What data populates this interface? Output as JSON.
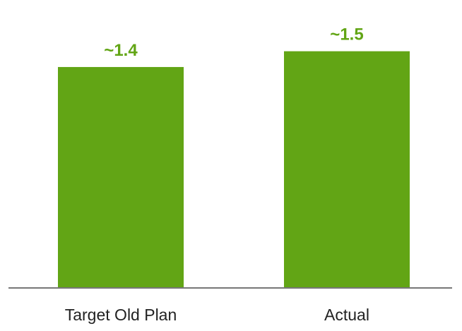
{
  "chart_data": {
    "type": "bar",
    "categories": [
      "Target Old Plan",
      "Actual"
    ],
    "values": [
      1.4,
      1.5
    ],
    "data_labels": [
      "~1.4",
      "~1.5"
    ],
    "title": "",
    "xlabel": "",
    "ylabel": "",
    "ylim": [
      0,
      1.61
    ],
    "grid": false,
    "legend": "none"
  },
  "colors": {
    "bar": "#62a515",
    "data_label": "#62a515",
    "axis": "#777777",
    "category_label": "#222222"
  }
}
